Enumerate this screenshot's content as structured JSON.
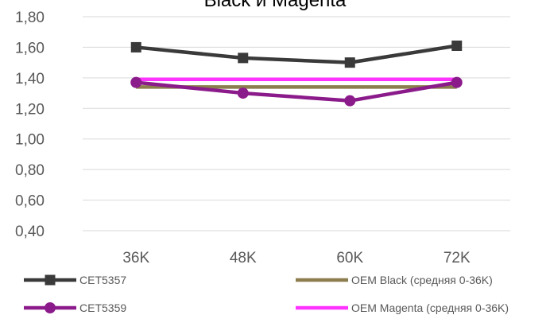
{
  "chart_data": {
    "type": "line",
    "title": "Black и Magenta",
    "xlabel": "",
    "ylabel": "",
    "categories": [
      "36K",
      "48K",
      "60K",
      "72K"
    ],
    "ylim": [
      0.4,
      1.8
    ],
    "yticks": [
      "0,40",
      "0,60",
      "0,80",
      "1,00",
      "1,20",
      "1,40",
      "1,60",
      "1,80"
    ],
    "ytick_values": [
      0.4,
      0.6,
      0.8,
      1.0,
      1.2,
      1.4,
      1.6,
      1.8
    ],
    "grid": true,
    "legend_position": "bottom",
    "series": [
      {
        "name": "CET5357",
        "values": [
          1.6,
          1.53,
          1.5,
          1.61
        ],
        "color": "#3a3a3a",
        "marker": "square"
      },
      {
        "name": "OEM Black (средняя 0-36K)",
        "values": [
          1.34,
          1.34,
          1.34,
          1.34
        ],
        "color": "#8b7d4e",
        "marker": "none"
      },
      {
        "name": "CET5359",
        "values": [
          1.37,
          1.3,
          1.25,
          1.37
        ],
        "color": "#8b1a8b",
        "marker": "circle"
      },
      {
        "name": "OEM Magenta (средняя 0-36K)",
        "values": [
          1.39,
          1.39,
          1.39,
          1.39
        ],
        "color": "#ff33ff",
        "marker": "none"
      }
    ]
  }
}
